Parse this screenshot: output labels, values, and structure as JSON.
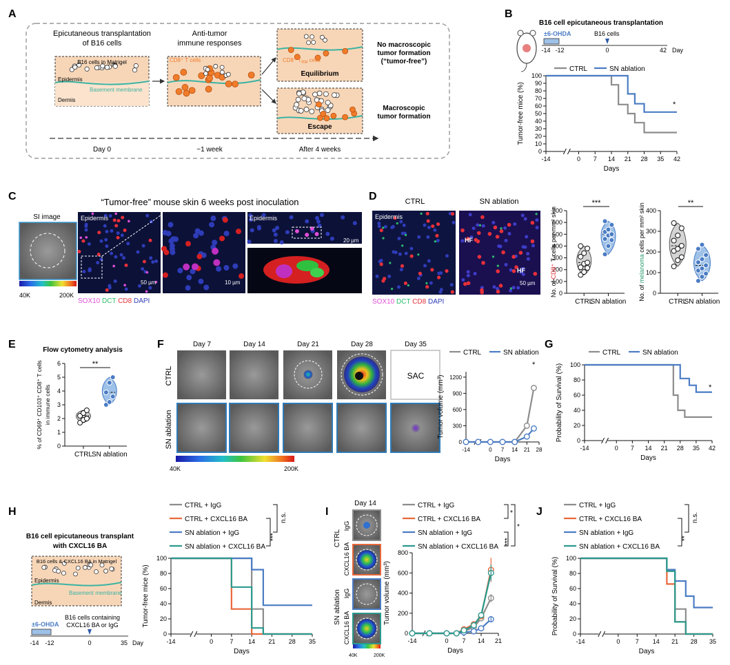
{
  "colors": {
    "ctrl": "#8c8c8c",
    "sn": "#4a7cc4",
    "ba": "#e8673a",
    "teal": "#2a9a8e",
    "membrane": "#3bb3a2",
    "skin": "#f7d6b8",
    "cd8": "#f07c2a",
    "sox10": "#e04fd8",
    "dct": "#2bbf6b",
    "cd8txt": "#e8303a",
    "dapi": "#2e3cb8"
  },
  "panels": {
    "A": "A",
    "B": "B",
    "C": "C",
    "D": "D",
    "E": "E",
    "F": "F",
    "G": "G",
    "H": "H",
    "I": "I",
    "J": "J"
  },
  "a": {
    "step1": [
      "Epicutaneous transplantation",
      "of B16 cells"
    ],
    "step2": [
      "Anti-tumor",
      "immune responses"
    ],
    "b16_label": "B16 cells in Matrigel",
    "epidermis": "Epidermis",
    "dermis": "Dermis",
    "basement": "Basement membrane",
    "cd8": "CD8⁺ T cells",
    "cd8trm": "CD8⁺ T",
    "cd8trm_sub": "RM",
    "cd8trm_tail": " cells",
    "equilibrium": "Equilibrium",
    "escape": "Escape",
    "no_macro": [
      "No macroscopic",
      "tumor formation",
      "(“tumor-free”)"
    ],
    "macro": [
      "Macroscopic",
      "tumor formation"
    ],
    "timeline": [
      "Day 0",
      "~1 week",
      "After 4 weeks"
    ]
  },
  "b": {
    "title": "B16 cell epicutaneous transplantation",
    "ohda": "±6-OHDA",
    "b16": "B16 cells",
    "tl_ticks": [
      "-14",
      "-12",
      "0",
      "42"
    ],
    "day": "Day",
    "legend": [
      "CTRL",
      "SN ablation"
    ],
    "star": "*"
  },
  "c": {
    "title": "“Tumor-free” mouse skin 6 weeks post inoculation",
    "si": "SI image",
    "cbar": [
      "40K",
      "200K"
    ],
    "epidermis": "Epidermis",
    "scale1": "50 µm",
    "scale2": "10 µm",
    "scale3": "20 µm",
    "stain": [
      "SOX10",
      "DCT",
      "CD8",
      "DAPI"
    ]
  },
  "d": {
    "ctrl": "CTRL",
    "sn": "SN ablation",
    "epidermis": "Epidermis",
    "hf": "HF",
    "scale": "50 µm",
    "stain": [
      "SOX10",
      "DCT",
      "CD8",
      "DAPI"
    ],
    "ylabel1": [
      "No. of ",
      "CD8⁺",
      " T cells per mm² skin"
    ],
    "ylabel2": [
      "No. of ",
      "melanoma",
      " cells per mm² skin"
    ],
    "sig1": "***",
    "sig2": "**"
  },
  "e": {
    "title": "Flow cytometry analysis",
    "ylabel": [
      "% of CD69⁺ CD103⁺ CD8⁺ T cells",
      "in immune cells"
    ],
    "sig": "**"
  },
  "f": {
    "days": [
      "Day 7",
      "Day 14",
      "Day 21",
      "Day 28",
      "Day 35"
    ],
    "ctrl": "CTRL",
    "sn": "SN ablation",
    "sac": "SAC",
    "cbar": [
      "40K",
      "200K"
    ],
    "legend": [
      "CTRL",
      "SN ablation"
    ],
    "star": "*"
  },
  "g": {
    "legend": [
      "CTRL",
      "SN ablation"
    ],
    "star": "*"
  },
  "h": {
    "title": [
      "B16 cell epicutaneous transplant",
      "with CXCL16 BA"
    ],
    "matrigel": "B16 cells & CXCL16 BA in Matrigel",
    "epidermis": "Epidermis",
    "dermis": "Dermis",
    "basement": "Basement membrane",
    "ohda": "±6-OHDA",
    "b16": [
      "B16 cells containing",
      "CXCL16 BA or IgG"
    ],
    "tl_ticks": [
      "-14",
      "-12",
      "0",
      "35"
    ],
    "day": "Day",
    "legend": [
      "CTRL + IgG",
      "CTRL + CXCL16 BA",
      "SN ablation + IgG",
      "SN ablation + CXCL16 BA"
    ],
    "sig": [
      "n.s.",
      "***"
    ]
  },
  "i": {
    "day": "Day 14",
    "ctrl": "CTRL",
    "sn": "SN ablation",
    "igg": "IgG",
    "ba": "CXCL16 BA",
    "cbar": [
      "40K",
      "200K"
    ],
    "legend": [
      "CTRL + IgG",
      "CTRL + CXCL16 BA",
      "SN ablation + IgG",
      "SN ablation + CXCL16 BA"
    ],
    "sig": [
      "*",
      "*",
      "***"
    ]
  },
  "j": {
    "legend": [
      "CTRL + IgG",
      "CTRL + CXCL16 BA",
      "SN ablation + IgG",
      "SN ablation + CXCL16 BA"
    ],
    "sig": [
      "n.s.",
      "**"
    ]
  },
  "chart_data": [
    {
      "id": "B",
      "type": "line",
      "title": "",
      "xlabel": "Days",
      "ylabel": "Tumor-free mice (%)",
      "x_ticks": [
        -14,
        0,
        7,
        14,
        21,
        28,
        35,
        42
      ],
      "y_ticks": [
        0,
        10,
        20,
        30,
        40,
        50,
        60,
        70,
        80,
        90,
        100
      ],
      "xlim": [
        -14,
        42
      ],
      "ylim": [
        0,
        100
      ],
      "step": true,
      "series": [
        {
          "name": "CTRL",
          "color": "#8c8c8c",
          "x": [
            -14,
            14,
            14,
            17,
            17,
            21,
            21,
            24,
            24,
            28,
            28,
            42
          ],
          "y": [
            100,
            100,
            88,
            88,
            62,
            62,
            50,
            50,
            38,
            38,
            25,
            25
          ]
        },
        {
          "name": "SN ablation",
          "color": "#4a7cc4",
          "x": [
            -14,
            21,
            21,
            24,
            24,
            28,
            28,
            42
          ],
          "y": [
            100,
            100,
            76,
            76,
            63,
            63,
            52,
            52
          ]
        }
      ]
    },
    {
      "id": "D1",
      "type": "violin",
      "ylabel": "No. of CD8+ T cells per mm² skin",
      "yticks": [
        0,
        100,
        200,
        300,
        400,
        500,
        600,
        700
      ],
      "ylim": [
        0,
        700
      ],
      "categories": [
        "CTRL",
        "SN ablation"
      ],
      "points": [
        [
          155,
          180,
          215,
          220,
          250,
          260,
          310,
          340,
          380,
          400
        ],
        [
          330,
          400,
          450,
          460,
          490,
          500,
          520,
          540,
          580,
          610
        ]
      ]
    },
    {
      "id": "D2",
      "type": "violin",
      "ylabel": "No. of melanoma cells per mm² skin",
      "yticks": [
        0,
        100,
        200,
        300,
        400
      ],
      "ylim": [
        0,
        400
      ],
      "categories": [
        "CTRL",
        "SN ablation"
      ],
      "points": [
        [
          130,
          160,
          175,
          205,
          215,
          230,
          255,
          280,
          315,
          340
        ],
        [
          60,
          80,
          95,
          110,
          120,
          135,
          150,
          165,
          185,
          215,
          235
        ]
      ]
    },
    {
      "id": "E",
      "type": "violin",
      "ylabel": "% of CD69+ CD103+ CD8+ T cells in immune cells",
      "yticks": [
        0,
        1,
        2,
        3,
        4,
        5,
        6
      ],
      "ylim": [
        0,
        6
      ],
      "categories": [
        "CTRL",
        "SN ablation"
      ],
      "points": [
        [
          1.7,
          1.9,
          2.0,
          2.2,
          2.4,
          2.6
        ],
        [
          3.0,
          3.2,
          3.6,
          3.9,
          4.6,
          5.0
        ]
      ]
    },
    {
      "id": "F",
      "type": "line",
      "xlabel": "Days",
      "ylabel": "Tumor volume (mm³)",
      "x_ticks": [
        -14,
        0,
        7,
        14,
        21,
        28
      ],
      "y_ticks": [
        0,
        300,
        600,
        900,
        1200
      ],
      "xlim": [
        -14,
        28
      ],
      "ylim": [
        0,
        1300
      ],
      "series": [
        {
          "name": "CTRL",
          "color": "#8c8c8c",
          "x": [
            -14,
            -7,
            0,
            7,
            14,
            21,
            25
          ],
          "y": [
            0,
            0,
            0,
            0,
            0,
            300,
            1000
          ]
        },
        {
          "name": "SN ablation",
          "color": "#4a7cc4",
          "x": [
            -14,
            -7,
            0,
            7,
            14,
            21,
            25
          ],
          "y": [
            0,
            0,
            0,
            0,
            0,
            100,
            250
          ]
        }
      ]
    },
    {
      "id": "G",
      "type": "line",
      "xlabel": "Days",
      "ylabel": "Probability of Survival (%)",
      "x_ticks": [
        -14,
        0,
        7,
        14,
        21,
        28,
        35,
        42
      ],
      "y_ticks": [
        0,
        20,
        40,
        60,
        80,
        100
      ],
      "xlim": [
        -14,
        42
      ],
      "ylim": [
        0,
        100
      ],
      "step": true,
      "series": [
        {
          "name": "CTRL",
          "color": "#8c8c8c",
          "x": [
            -14,
            25,
            25,
            27,
            27,
            30,
            30,
            42
          ],
          "y": [
            100,
            100,
            60,
            60,
            40,
            40,
            31,
            31
          ]
        },
        {
          "name": "SN ablation",
          "color": "#4a7cc4",
          "x": [
            -14,
            28,
            28,
            32,
            32,
            35,
            35,
            42
          ],
          "y": [
            100,
            100,
            82,
            82,
            73,
            73,
            64,
            64
          ]
        }
      ]
    },
    {
      "id": "H",
      "type": "line",
      "xlabel": "Days",
      "ylabel": "Tumor-free mice (%)",
      "x_ticks": [
        -14,
        0,
        7,
        14,
        21,
        28,
        35
      ],
      "y_ticks": [
        0,
        20,
        40,
        60,
        80,
        100
      ],
      "xlim": [
        -14,
        35
      ],
      "ylim": [
        0,
        100
      ],
      "step": true,
      "series": [
        {
          "name": "CTRL + IgG",
          "color": "#8c8c8c",
          "x": [
            -14,
            14,
            14,
            18,
            18,
            35
          ],
          "y": [
            100,
            100,
            33,
            33,
            0,
            0
          ]
        },
        {
          "name": "CTRL + CXCL16 BA",
          "color": "#e8673a",
          "x": [
            -14,
            7,
            7,
            14,
            14,
            35
          ],
          "y": [
            100,
            100,
            33,
            33,
            0,
            0
          ]
        },
        {
          "name": "SN ablation + IgG",
          "color": "#4a7cc4",
          "x": [
            -14,
            14,
            14,
            18,
            18,
            35
          ],
          "y": [
            100,
            100,
            85,
            85,
            38,
            38
          ]
        },
        {
          "name": "SN ablation + CXCL16 BA",
          "color": "#2a9a8e",
          "x": [
            -14,
            7,
            7,
            14,
            14,
            18,
            18,
            35
          ],
          "y": [
            100,
            100,
            62,
            62,
            8,
            8,
            0,
            0
          ]
        }
      ]
    },
    {
      "id": "I",
      "type": "line",
      "xlabel": "Days",
      "ylabel": "Tumor volume (mm³)",
      "x_ticks": [
        -14,
        0,
        7,
        14,
        21
      ],
      "y_ticks": [
        0,
        200,
        400,
        600,
        800
      ],
      "xlim": [
        -14,
        21
      ],
      "ylim": [
        0,
        800
      ],
      "series": [
        {
          "name": "CTRL + IgG",
          "color": "#8c8c8c",
          "x": [
            -14,
            -7,
            0,
            4,
            7,
            11,
            14,
            18
          ],
          "y": [
            0,
            0,
            0,
            0,
            20,
            60,
            150,
            350
          ]
        },
        {
          "name": "CTRL + CXCL16 BA",
          "color": "#e8673a",
          "x": [
            -14,
            -7,
            0,
            4,
            7,
            11,
            14,
            18
          ],
          "y": [
            0,
            0,
            0,
            0,
            40,
            90,
            170,
            630
          ]
        },
        {
          "name": "SN ablation + IgG",
          "color": "#4a7cc4",
          "x": [
            -14,
            -7,
            0,
            4,
            7,
            11,
            14,
            18
          ],
          "y": [
            0,
            0,
            0,
            0,
            10,
            20,
            50,
            140
          ]
        },
        {
          "name": "SN ablation + CXCL16 BA",
          "color": "#2a9a8e",
          "x": [
            -14,
            -7,
            0,
            4,
            7,
            11,
            14,
            18
          ],
          "y": [
            0,
            0,
            0,
            0,
            30,
            80,
            180,
            600
          ]
        }
      ]
    },
    {
      "id": "J",
      "type": "line",
      "xlabel": "Days",
      "ylabel": "Probability of Survival (%)",
      "x_ticks": [
        -14,
        0,
        7,
        14,
        21,
        28,
        35
      ],
      "y_ticks": [
        0,
        20,
        40,
        60,
        80,
        100
      ],
      "xlim": [
        -14,
        35
      ],
      "ylim": [
        0,
        100
      ],
      "step": true,
      "series": [
        {
          "name": "CTRL + IgG",
          "color": "#8c8c8c",
          "x": [
            -14,
            18,
            18,
            21,
            21,
            25,
            25,
            35
          ],
          "y": [
            100,
            100,
            83,
            83,
            33,
            33,
            0,
            0
          ]
        },
        {
          "name": "CTRL + CXCL16 BA",
          "color": "#e8673a",
          "x": [
            -14,
            18,
            18,
            21,
            21,
            25,
            25,
            35
          ],
          "y": [
            100,
            100,
            66,
            66,
            16,
            16,
            0,
            0
          ]
        },
        {
          "name": "SN ablation + IgG",
          "color": "#4a7cc4",
          "x": [
            -14,
            18,
            18,
            21,
            21,
            25,
            25,
            28,
            28,
            35
          ],
          "y": [
            100,
            100,
            85,
            85,
            70,
            70,
            50,
            50,
            35,
            35
          ]
        },
        {
          "name": "SN ablation + CXCL16 BA",
          "color": "#2a9a8e",
          "x": [
            -14,
            18,
            18,
            21,
            21,
            25,
            25,
            35
          ],
          "y": [
            100,
            100,
            83,
            83,
            16,
            16,
            0,
            0
          ]
        }
      ]
    }
  ]
}
